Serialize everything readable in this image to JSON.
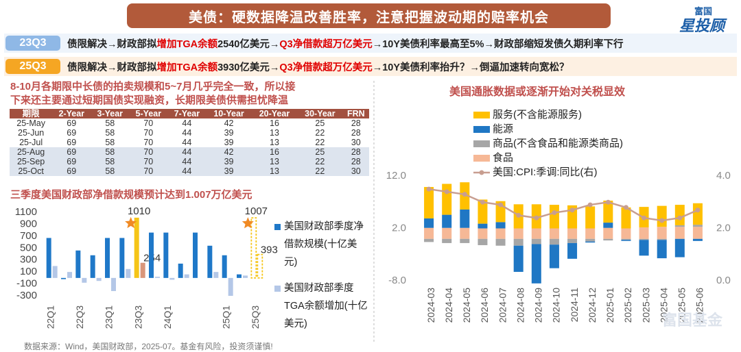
{
  "header": {
    "title": "美债：硬数据降温改善胜率，注意把握波动期的赔率机会",
    "logo_top": "富国",
    "logo_main": "星投顾"
  },
  "timeline": [
    {
      "label": "23Q3",
      "label_color": "#8fb8e6",
      "background": "#eef4fb",
      "segments": [
        {
          "text": "债限解决→财政部拟"
        },
        {
          "text": "增加TGA余额",
          "color": "#e00000"
        },
        {
          "text": "2540亿美元→"
        },
        {
          "text": "Q3净借款超万亿美元",
          "color": "#e00000"
        },
        {
          "text": "→10Y美债利率最高至5%→财政部缩短发债久期利率下行"
        }
      ]
    },
    {
      "label": "25Q3",
      "label_color": "#f5a623",
      "background": "#fdf0e2",
      "segments": [
        {
          "text": "债限解决→财政部拟"
        },
        {
          "text": "增加TGA余额",
          "color": "#e00000"
        },
        {
          "text": "3930亿美元→"
        },
        {
          "text": "Q3净借款超万亿美元",
          "color": "#e00000"
        },
        {
          "text": "→10Y美债利率抬升？→倒逼加速转向宽松？"
        }
      ]
    }
  ],
  "table_section": {
    "heading": [
      "8-10月各期限中长债的拍卖规模和5~7月几乎完全一致，所以接",
      "下来还主要通过短期国债实现融资，长期限美债供需担忧降温"
    ],
    "columns": [
      "期限",
      "2-Year",
      "3-Year",
      "5-Year",
      "7-Year",
      "10-Year",
      "20-Year",
      "30-Year",
      "FRN"
    ],
    "rows": [
      [
        "25-May",
        69,
        58,
        70,
        44,
        42,
        16,
        25,
        28
      ],
      [
        "25-Jun",
        69,
        58,
        70,
        44,
        39,
        13,
        22,
        28
      ],
      [
        "25-Jul",
        69,
        58,
        70,
        44,
        39,
        13,
        22,
        30
      ],
      [
        "25-Aug",
        69,
        58,
        70,
        44,
        42,
        16,
        25,
        28
      ],
      [
        "25-Sep",
        69,
        58,
        70,
        44,
        39,
        13,
        22,
        28
      ],
      [
        "25-Oct",
        69,
        58,
        70,
        44,
        39,
        13,
        22,
        30
      ]
    ]
  },
  "chart_data": [
    {
      "type": "bar",
      "title": "三季度美国财政部净借款规模预计达到1.007万亿美元",
      "categories": [
        "22Q1",
        null,
        "22Q3",
        null,
        "23Q1",
        null,
        "23Q3",
        null,
        "24Q1",
        null,
        null,
        null,
        "25Q1",
        null,
        "25Q3"
      ],
      "series": [
        {
          "name": "美国财政部季度净借款规模(十亿美元)",
          "color": "#1f78c8",
          "colors": [
            "#1f78c8",
            "#1f78c8",
            "#1f78c8",
            "#1f78c8",
            "#1f78c8",
            "#1f78c8",
            "#f5c518",
            "#1f78c8",
            "#1f78c8",
            "#1f78c8",
            "#1f78c8",
            "#1f78c8",
            "#1f78c8",
            "#1f78c8",
            "#f5c518"
          ],
          "values": [
            670,
            -20,
            460,
            380,
            670,
            670,
            1010,
            760,
            760,
            240,
            760,
            540,
            380,
            60,
            1007
          ],
          "value_labels": [
            null,
            null,
            null,
            null,
            null,
            null,
            "1010",
            null,
            null,
            null,
            null,
            null,
            null,
            null,
            "1007"
          ]
        },
        {
          "name": "美国财政部季度TGA余额增加(十亿美元)",
          "color": "#b4c7e7",
          "colors": [
            "#b4c7e7",
            "#b4c7e7",
            "#b4c7e7",
            "#b4c7e7",
            "#b4c7e7",
            "#b4c7e7",
            "#d9967a",
            "#b4c7e7",
            "#b4c7e7",
            "#b4c7e7",
            "#b4c7e7",
            "#b4c7e7",
            "#b4c7e7",
            "#b4c7e7",
            "#f5c518"
          ],
          "values": [
            200,
            100,
            -80,
            -50,
            -220,
            150,
            254,
            20,
            -30,
            60,
            0,
            100,
            -300,
            40,
            393
          ],
          "value_labels": [
            null,
            null,
            null,
            null,
            null,
            null,
            "254",
            null,
            null,
            null,
            null,
            null,
            null,
            null,
            "393"
          ]
        }
      ],
      "ylim": [
        -300,
        1100
      ],
      "yticks": [
        1100,
        900,
        700,
        500,
        300,
        100,
        -100,
        -300
      ],
      "star_color": "#f08a24"
    },
    {
      "type": "stacked_bar",
      "title": "美国通胀数据或逐渐开始对关税显效",
      "categories": [
        "2024-03",
        "2024-04",
        "2024-05",
        "2024-06",
        "2024-07",
        "2024-08",
        "2024-09",
        "2024-10",
        "2024-11",
        "2024-12",
        "2025-01",
        "2025-02",
        "2025-03",
        "2025-04",
        "2025-05",
        "2025-06"
      ],
      "series": [
        {
          "name": "服务(不含能源服务)",
          "color": "#ffc000",
          "values": [
            6.0,
            5.9,
            5.2,
            4.6,
            4.0,
            4.6,
            4.6,
            4.5,
            4.4,
            4.2,
            4.2,
            4.0,
            3.9,
            4.0,
            3.9,
            4.1
          ]
        },
        {
          "name": "能源",
          "color": "#1f77c4",
          "values": [
            1.8,
            2.5,
            3.5,
            0.9,
            1.2,
            -5.0,
            -7.5,
            -4.5,
            -3.0,
            -0.2,
            1.0,
            -0.2,
            -3.0,
            -3.5,
            -3.5,
            -0.4
          ]
        },
        {
          "name": "商品(不含食品和能源类商品)",
          "color": "#a6a6a6",
          "values": [
            -0.6,
            -0.8,
            -0.8,
            -1.2,
            -1.3,
            -1.3,
            -1.0,
            -1.1,
            -0.8,
            -0.5,
            -0.3,
            -0.2,
            -0.2,
            -0.2,
            0.3,
            0.4
          ]
        },
        {
          "name": "食品",
          "color": "#f6b896",
          "values": [
            2.1,
            2.1,
            2.1,
            2.0,
            2.0,
            2.0,
            2.0,
            2.0,
            2.0,
            2.0,
            2.1,
            2.0,
            2.2,
            2.3,
            2.3,
            2.3
          ]
        },
        {
          "name": "美国:CPI:季调:同比(右)",
          "color": "#c89e90",
          "type": "line",
          "axis": "y2",
          "values": [
            3.5,
            3.4,
            3.3,
            3.0,
            2.9,
            2.5,
            2.4,
            2.6,
            2.7,
            2.9,
            3.0,
            2.8,
            2.4,
            2.3,
            2.4,
            2.7
          ]
        }
      ],
      "ylim": [
        -8,
        12
      ],
      "yticks": [
        {
          "value": 12,
          "label": "12.0"
        },
        {
          "value": 2,
          "label": "2.0"
        },
        {
          "value": -8,
          "label": "-8.0"
        }
      ],
      "y2lim": [
        0,
        4
      ],
      "y2ticks": [
        {
          "value": 4,
          "label": "4.0"
        },
        {
          "value": 2,
          "label": "2.0"
        },
        {
          "value": 0,
          "label": "0.0"
        }
      ]
    }
  ],
  "footer": "数据来源：Wind，美国财政部，2025-07。基金有风险，投资须谨慎!",
  "watermark": "富国基金"
}
